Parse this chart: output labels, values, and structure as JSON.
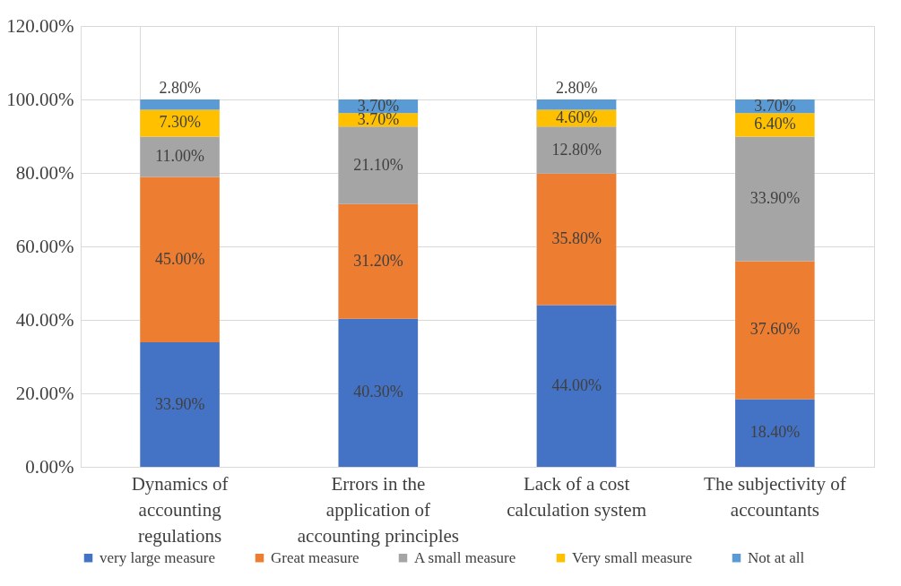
{
  "chart_data": {
    "type": "bar",
    "stacked": true,
    "categories": [
      "Dynamics of accounting regulations",
      "Errors in the application of accounting principles",
      "Lack of a cost calculation system",
      "The subjectivity of accountants"
    ],
    "series": [
      {
        "name": "very large measure",
        "color": "#4472c4",
        "values": [
          33.9,
          40.3,
          44.0,
          18.4
        ],
        "value_labels": [
          "33.90%",
          "40.30%",
          "44.00%",
          "18.40%"
        ]
      },
      {
        "name": "Great measure",
        "color": "#ed7d31",
        "values": [
          45.0,
          31.2,
          35.8,
          37.6
        ],
        "value_labels": [
          "45.00%",
          "31.20%",
          "35.80%",
          "37.60%"
        ]
      },
      {
        "name": "A small measure",
        "color": "#a5a5a5",
        "values": [
          11.0,
          21.1,
          12.8,
          33.9
        ],
        "value_labels": [
          "11.00%",
          "21.10%",
          "12.80%",
          "33.90%"
        ]
      },
      {
        "name": "Very small measure",
        "color": "#ffc000",
        "values": [
          7.3,
          3.7,
          4.6,
          6.4
        ],
        "value_labels": [
          "7.30%",
          "3.70%",
          "4.60%",
          "6.40%"
        ]
      },
      {
        "name": "Not at all",
        "color": "#5b9bd5",
        "values": [
          2.8,
          3.7,
          2.8,
          3.7
        ],
        "value_labels": [
          "2.80%",
          "3.70%",
          "2.80%",
          "3.70%"
        ]
      }
    ],
    "ylim": [
      0,
      120
    ],
    "yticks": [
      {
        "value": 0,
        "label": "0.00%"
      },
      {
        "value": 20,
        "label": "20.00%"
      },
      {
        "value": 40,
        "label": "40.00%"
      },
      {
        "value": 60,
        "label": "60.00%"
      },
      {
        "value": 80,
        "label": "80.00%"
      },
      {
        "value": 100,
        "label": "100.00%"
      },
      {
        "value": 120,
        "label": "120.00%"
      }
    ],
    "grid": true,
    "legend": "bottom"
  }
}
